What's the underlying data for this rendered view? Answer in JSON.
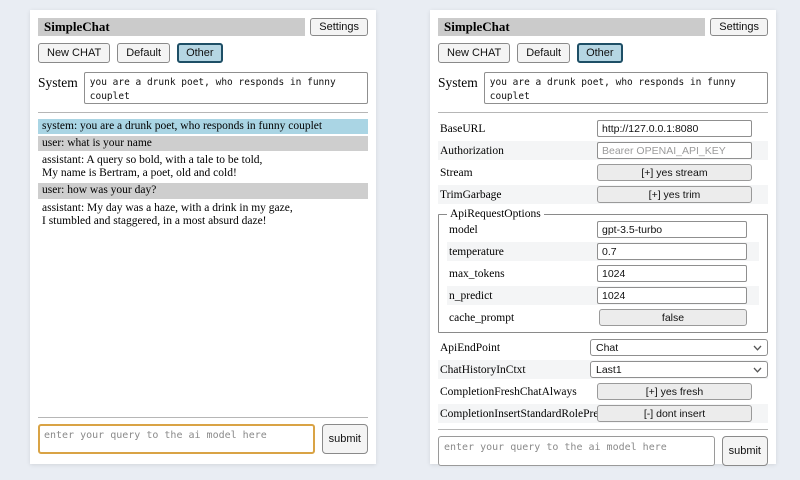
{
  "app": {
    "title": "SimpleChat",
    "settings_button_label": "Settings",
    "chat_session_buttons": [
      "New CHAT",
      "Default",
      "Other"
    ],
    "active_session": "Other",
    "system_label": "System",
    "system_prompt": "you are a drunk poet, who responds in funny couplet",
    "query_placeholder": "enter your query to the ai model here",
    "submit_label": "submit"
  },
  "chat": {
    "messages": [
      {
        "role": "system",
        "text": "system: you are a drunk poet, who responds in funny couplet"
      },
      {
        "role": "user",
        "text": "user: what is your name"
      },
      {
        "role": "assistant",
        "text": "assistant: A query so bold, with a tale to be told,\nMy name is Bertram, a poet, old and cold!"
      },
      {
        "role": "user",
        "text": "user: how was your day?"
      },
      {
        "role": "assistant",
        "text": "assistant: My day was a haze, with a drink in my gaze,\nI stumbled and staggered, in a most absurd daze!"
      }
    ]
  },
  "settings": {
    "top_rows": [
      {
        "label": "BaseURL",
        "type": "input",
        "value": "http://127.0.0.1:8080"
      },
      {
        "label": "Authorization",
        "type": "input",
        "value": "",
        "placeholder": "Bearer OPENAI_API_KEY"
      },
      {
        "label": "Stream",
        "type": "button",
        "value": "[+] yes stream"
      },
      {
        "label": "TrimGarbage",
        "type": "button",
        "value": "[+] yes trim"
      }
    ],
    "api_request_options": {
      "legend": "ApiRequestOptions",
      "rows": [
        {
          "label": "model",
          "type": "input",
          "value": "gpt-3.5-turbo"
        },
        {
          "label": "temperature",
          "type": "input",
          "value": "0.7"
        },
        {
          "label": "max_tokens",
          "type": "input",
          "value": "1024"
        },
        {
          "label": "n_predict",
          "type": "input",
          "value": "1024"
        },
        {
          "label": "cache_prompt",
          "type": "button",
          "value": "false"
        }
      ]
    },
    "bottom_rows": [
      {
        "label": "ApiEndPoint",
        "type": "select",
        "value": "Chat"
      },
      {
        "label": "ChatHistoryInCtxt",
        "type": "select",
        "value": "Last1"
      },
      {
        "label": "CompletionFreshChatAlways",
        "type": "button",
        "value": "[+] yes fresh"
      },
      {
        "label": "CompletionInsertStandardRolePrefix",
        "type": "button",
        "value": "[-] dont insert"
      }
    ]
  },
  "colors": {
    "page_background": "#e9edf3",
    "titlebar_background": "#cbcbcb",
    "active_session_background": "#b5d6e3",
    "active_session_border": "#1e4f66",
    "system_message_background": "#aad5e4",
    "user_message_background": "#cecece",
    "query_focus_border": "#d9a345"
  }
}
